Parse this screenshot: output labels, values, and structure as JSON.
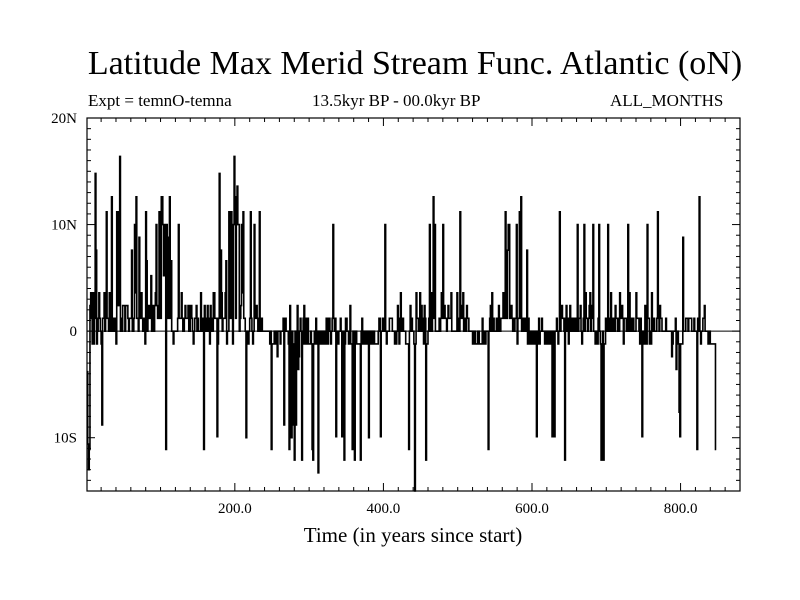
{
  "chart_data": {
    "type": "line",
    "title": "Latitude Max Merid Stream Func. Atlantic (oN)",
    "subtitle_left": "Expt = temnO-temna",
    "subtitle_center": "13.5kyr BP - 00.0kyr BP",
    "subtitle_right": "ALL_MONTHS",
    "xlabel": "Time (in years since start)",
    "ylabel": "",
    "xlim": [
      1,
      880
    ],
    "ylim": [
      -15,
      20
    ],
    "x_ticks": [
      {
        "value": 200,
        "label": "200.0"
      },
      {
        "value": 400,
        "label": "400.0"
      },
      {
        "value": 600,
        "label": "600.0"
      },
      {
        "value": 800,
        "label": "800.0"
      }
    ],
    "y_ticks": [
      {
        "value": 20,
        "label": "20N"
      },
      {
        "value": 10,
        "label": "10N"
      },
      {
        "value": 0,
        "label": "0"
      },
      {
        "value": -10,
        "label": "10S"
      }
    ],
    "grid": false,
    "series": [
      {
        "name": "temnO-temna",
        "x_start": 1,
        "x_step": 1,
        "values": [
          -3.8,
          -10.6,
          -13.0,
          -11.1,
          2.4,
          3.6,
          1.2,
          -1.2,
          3.6,
          -1.2,
          1.2,
          14.8,
          7.6,
          -1.2,
          0.0,
          1.2,
          3.6,
          1.2,
          0.0,
          -1.2,
          -8.8,
          1.2,
          1.2,
          3.6,
          0.0,
          2.4,
          11.2,
          1.2,
          1.2,
          0.0,
          3.6,
          0.0,
          2.4,
          12.6,
          0.0,
          0.0,
          1.2,
          1.2,
          0.0,
          -1.2,
          11.2,
          3.6,
          2.4,
          11.2,
          16.4,
          0.0,
          1.2,
          0.0,
          2.4,
          2.4,
          2.4,
          0.0,
          2.4,
          2.4,
          2.4,
          1.2,
          0.0,
          1.2,
          1.2,
          1.2,
          7.6,
          0.0,
          0.0,
          1.2,
          10.0,
          3.6,
          12.6,
          1.2,
          1.2,
          0.0,
          8.8,
          2.4,
          1.2,
          3.6,
          1.2,
          0.0,
          1.2,
          0.0,
          -1.2,
          11.2,
          6.6,
          0.0,
          2.4,
          1.2,
          2.4,
          1.2,
          5.2,
          0.0,
          0.0,
          2.4,
          0.0,
          2.4,
          3.6,
          10.0,
          2.4,
          1.2,
          1.2,
          11.2,
          5.2,
          1.2,
          12.6,
          12.6,
          10.0,
          5.2,
          8.8,
          10.0,
          -11.1,
          10.0,
          8.8,
          1.2,
          3.6,
          12.6,
          1.2,
          6.6,
          0.0,
          0.0,
          -1.2,
          0.0,
          0.0,
          0.0,
          0.0,
          0.0,
          1.2,
          10.0,
          1.2,
          1.2,
          1.2,
          3.6,
          1.2,
          0.0,
          0.0,
          1.2,
          2.4,
          1.2,
          1.2,
          1.2,
          2.4,
          0.0,
          0.0,
          2.4,
          2.4,
          1.2,
          0.0,
          -1.2,
          0.0,
          1.2,
          1.2,
          2.4,
          0.0,
          1.2,
          0.0,
          0.0,
          0.0,
          3.6,
          0.0,
          1.2,
          0.0,
          -11.1,
          2.4,
          0.0,
          1.2,
          0.0,
          2.4,
          1.2,
          0.0,
          -1.2,
          2.4,
          1.2,
          0.0,
          0.0,
          3.6,
          3.6,
          1.2,
          1.2,
          1.2,
          -9.9,
          -1.2,
          1.2,
          14.8,
          1.2,
          7.6,
          3.6,
          0.0,
          1.2,
          1.2,
          1.2,
          3.6,
          6.6,
          -1.2,
          0.0,
          0.0,
          11.2,
          10.0,
          1.2,
          11.2,
          1.2,
          -1.2,
          10.0,
          16.4,
          10.0,
          1.2,
          12.6,
          13.6,
          10.0,
          10.0,
          0.0,
          1.2,
          2.4,
          10.0,
          3.6,
          11.2,
          1.2,
          1.2,
          0.0,
          -10.0,
          0.0,
          -1.2,
          -1.2,
          0.0,
          1.2,
          11.2,
          1.2,
          0.0,
          -1.2,
          0.0,
          10.0,
          1.2,
          1.2,
          2.4,
          1.2,
          0.0,
          1.2,
          11.2,
          0.0,
          1.2,
          1.2,
          0.0,
          0.0,
          0.0,
          0.0,
          0.0,
          0.0,
          0.0,
          0.0,
          0.0,
          0.0,
          -1.2,
          0.0,
          -11.1,
          -1.2,
          -1.2,
          -1.2,
          0.0,
          -1.2,
          0.0,
          0.0,
          -2.4,
          0.0,
          0.0,
          0.0,
          -1.2,
          0.0,
          0.0,
          0.0,
          1.2,
          -8.8,
          0.0,
          1.2,
          0.0,
          0.0,
          0.0,
          -1.2,
          -11.1,
          2.4,
          -9.9,
          -10.0,
          0.0,
          -8.8,
          -1.2,
          -12.1,
          0.0,
          -8.8,
          0.0,
          2.4,
          -3.6,
          -2.4,
          0.0,
          1.2,
          0.0,
          -12.1,
          -1.2,
          1.2,
          2.4,
          -1.2,
          1.2,
          -1.2,
          -1.2,
          1.2,
          -1.2,
          -1.2,
          -1.2,
          0.0,
          -1.2,
          -11.1,
          -12.1,
          -1.2,
          0.0,
          -1.2,
          1.2,
          0.0,
          -1.2,
          -13.3,
          0.0,
          -1.2,
          0.0,
          -1.2,
          0.0,
          -1.2,
          -1.2,
          0.0,
          -1.2,
          -1.2,
          1.2,
          1.2,
          -1.2,
          1.2,
          1.2,
          0.0,
          -1.2,
          0.0,
          1.2,
          10.0,
          1.2,
          0.0,
          1.2,
          -9.9,
          -1.2,
          0.0,
          -1.2,
          0.0,
          0.0,
          1.2,
          0.0,
          -9.9,
          -1.2,
          0.0,
          -12.1,
          -1.2,
          1.2,
          1.2,
          0.0,
          0.0,
          -1.2,
          0.0,
          2.4,
          -1.2,
          -1.2,
          -11.1,
          0.0,
          0.0,
          -12.1,
          0.0,
          0.0,
          -1.2,
          -1.2,
          -1.2,
          -1.2,
          -1.2,
          -12.1,
          0.0,
          1.2,
          -1.2,
          0.0,
          0.0,
          -1.2,
          -1.2,
          0.0,
          -1.2,
          0.0,
          -10.0,
          0.0,
          -1.2,
          -1.2,
          0.0,
          0.0,
          -1.2,
          0.0,
          -1.2,
          -1.2,
          -1.2,
          -1.2,
          -1.2,
          0.0,
          1.2,
          1.2,
          -9.9,
          0.0,
          0.0,
          1.2,
          0.0,
          0.0,
          10.0,
          0.0,
          -1.2,
          0.0,
          0.0,
          0.0,
          1.2,
          1.2,
          1.2,
          1.2,
          0.0,
          0.0,
          0.0,
          -1.2,
          0.0,
          -1.2,
          0.0,
          2.4,
          0.0,
          -1.2,
          1.2,
          3.6,
          0.0,
          1.2,
          1.2,
          0.0,
          0.0,
          0.0,
          -1.2,
          -1.2,
          -1.2,
          -1.2,
          -11.1,
          0.0,
          2.4,
          0.0,
          1.2,
          0.0,
          0.0,
          -1.2,
          -15.0,
          -1.2,
          3.6,
          1.2,
          1.2,
          0.0,
          1.2,
          3.6,
          0.0,
          2.4,
          0.0,
          1.2,
          -1.2,
          2.4,
          1.2,
          -12.1,
          -1.2,
          -1.2,
          0.0,
          1.2,
          10.0,
          0.0,
          3.6,
          0.0,
          1.2,
          12.6,
          1.2,
          10.0,
          0.0,
          0.0,
          0.0,
          0.0,
          0.0,
          1.2,
          0.0,
          1.2,
          3.6,
          1.2,
          10.0,
          1.2,
          2.4,
          1.2,
          1.2,
          0.0,
          1.2,
          2.4,
          1.2,
          1.2,
          1.2,
          3.6,
          0.0,
          0.0,
          0.0,
          0.0,
          0.0,
          0.0,
          0.0,
          3.6,
          0.0,
          1.2,
          0.0,
          11.2,
          1.2,
          1.2,
          2.4,
          3.6,
          0.0,
          1.2,
          1.2,
          0.0,
          2.4,
          1.2,
          1.2,
          0.0,
          0.0,
          0.0,
          0.0,
          0.0,
          -1.2,
          0.0,
          -1.2,
          0.0,
          -1.2,
          -1.2,
          -1.2,
          0.0,
          0.0,
          -1.2,
          -1.2,
          -1.2,
          -1.2,
          1.2,
          -1.2,
          -1.2,
          0.0,
          -1.2,
          0.0,
          0.0,
          0.0,
          -11.1,
          0.0,
          1.2,
          2.4,
          0.0,
          3.6,
          0.0,
          1.2,
          0.0,
          0.0,
          0.0,
          1.2,
          0.0,
          1.2,
          2.4,
          0.0,
          0.0,
          1.2,
          1.2,
          1.2,
          3.6,
          1.2,
          1.2,
          11.2,
          2.4,
          1.2,
          7.6,
          10.0,
          10.0,
          1.2,
          1.2,
          2.4,
          1.2,
          0.0,
          1.2,
          0.0,
          1.2,
          1.2,
          10.0,
          -1.2,
          1.2,
          1.2,
          11.2,
          1.2,
          12.6,
          0.0,
          1.2,
          0.0,
          1.2,
          1.2,
          0.0,
          1.2,
          7.6,
          -1.2,
          1.2,
          0.0,
          -1.2,
          0.0,
          0.0,
          -1.2,
          0.0,
          0.0,
          -1.2,
          0.0,
          0.0,
          -9.9,
          0.0,
          -1.2,
          1.2,
          -1.2,
          0.0,
          0.0,
          1.2,
          0.0,
          0.0,
          0.0,
          -1.2,
          -1.2,
          0.0,
          -1.2,
          0.0,
          0.0,
          -1.2,
          0.0,
          -1.2,
          0.0,
          -9.9,
          0.0,
          0.0,
          -9.9,
          0.0,
          0.0,
          1.2,
          0.0,
          -1.2,
          0.0,
          11.2,
          0.0,
          1.2,
          2.4,
          1.2,
          1.2,
          0.0,
          -12.1,
          1.2,
          2.4,
          0.0,
          1.2,
          -1.2,
          1.2,
          2.4,
          0.0,
          0.0,
          1.2,
          0.0,
          1.2,
          0.0,
          1.2,
          1.2,
          0.0,
          10.0,
          0.0,
          1.2,
          1.2,
          2.4,
          0.0,
          -1.2,
          0.0,
          1.2,
          10.0,
          0.0,
          3.6,
          1.2,
          1.2,
          0.0,
          1.2,
          2.4,
          3.6,
          0.0,
          2.4,
          1.2,
          10.0,
          0.0,
          0.0,
          -1.2,
          -1.2,
          0.0,
          -1.2,
          1.2,
          10.0,
          0.0,
          -1.2,
          -12.1,
          -1.2,
          0.0,
          -12.1,
          -1.2,
          -1.2,
          1.2,
          0.0,
          0.0,
          10.0,
          1.2,
          0.0,
          1.2,
          3.6,
          0.0,
          0.0,
          1.2,
          1.2,
          0.0,
          2.4,
          1.2,
          1.2,
          0.0,
          1.2,
          0.0,
          3.6,
          1.2,
          1.2,
          2.4,
          1.2,
          -1.2,
          1.2,
          1.2,
          1.2,
          0.0,
          0.0,
          10.0,
          0.0,
          3.6,
          0.0,
          1.2,
          0.0,
          1.2,
          1.2,
          0.0,
          0.0,
          0.0,
          3.6,
          1.2,
          1.2,
          1.2,
          0.0,
          -1.2,
          1.2,
          0.0,
          -9.9,
          0.0,
          -1.2,
          0.0,
          2.4,
          -1.2,
          -1.2,
          10.0,
          1.2,
          1.2,
          -1.2,
          0.0,
          -1.2,
          3.6,
          0.0,
          0.0,
          1.2,
          0.0,
          0.0,
          0.0,
          1.2,
          11.2,
          1.2,
          0.0,
          2.4,
          1.2,
          1.2,
          0.0,
          0.0,
          0.0,
          0.0,
          0.0,
          1.2,
          0.0,
          0.0,
          0.0,
          0.0,
          0.0,
          0.0,
          0.0,
          -2.4,
          -1.2,
          0.0,
          0.0,
          0.0,
          1.2,
          -3.6,
          0.0,
          0.0,
          -1.2,
          -7.6,
          -9.9,
          -1.2,
          -1.2,
          -1.2,
          8.8,
          0.0,
          0.0,
          0.0,
          1.2,
          1.2,
          1.2,
          0.0,
          1.2,
          1.2,
          1.2,
          1.2,
          0.0,
          0.0,
          0.0,
          1.2,
          0.0,
          0.0,
          0.0,
          -11.1,
          1.2,
          0.0,
          12.6,
          0.0,
          -1.2,
          0.0,
          0.0,
          1.2,
          1.2,
          2.4,
          0.0,
          0.0,
          0.0,
          0.0,
          -1.2,
          -1.2,
          0.0,
          -1.2,
          -1.2,
          -1.2,
          -1.2,
          -1.2,
          -1.2,
          -1.2,
          -11.1
        ]
      }
    ]
  }
}
